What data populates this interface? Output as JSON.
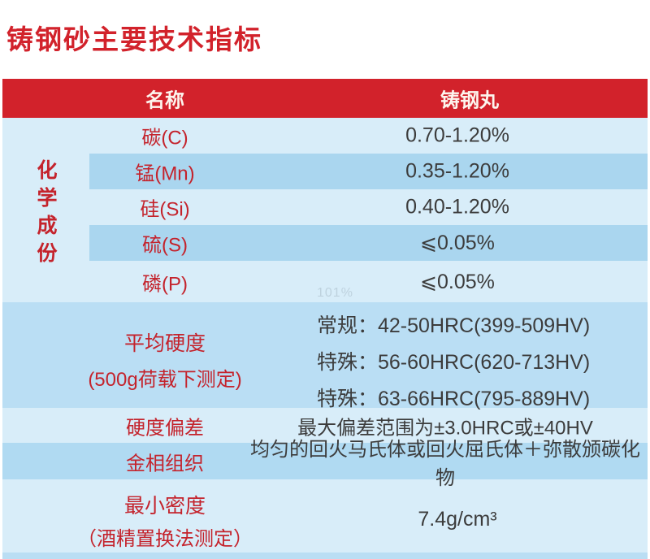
{
  "page": {
    "title": "铸钢砂主要技术指标",
    "watermark": "101%"
  },
  "colors": {
    "header_red": "#d2222b",
    "label_red": "#c4232c",
    "light_blue": "#d8edf9",
    "dark_row_blue": "#aad6ef",
    "block_blue": "#badef4",
    "value_text": "#3c3c3c"
  },
  "table": {
    "header": {
      "name_col": "名称",
      "value_col": "铸钢丸"
    },
    "category_label": {
      "text": "化学成份",
      "chars": [
        "化",
        "学",
        "成",
        "份"
      ]
    },
    "chemical_rows": [
      {
        "name": "碳(C)",
        "value": "0.70-1.20%"
      },
      {
        "name": "锰(Mn)",
        "value": "0.35-1.20%"
      },
      {
        "name": "硅(Si)",
        "value": "0.40-1.20%"
      },
      {
        "name": "硫(S)",
        "value": "⩽0.05%"
      },
      {
        "name": "磷(P)",
        "value": "⩽0.05%"
      }
    ],
    "hardness_row": {
      "label_line1": "平均硬度",
      "label_line2": "(500g荷载下测定)",
      "values": [
        "常规：42-50HRC(399-509HV)",
        "特殊：56-60HRC(620-713HV)",
        "特殊：63-66HRC(795-889HV)"
      ]
    },
    "deviation_row": {
      "label": "硬度偏差",
      "value": "最大偏差范围为±3.0HRC或±40HV"
    },
    "structure_row": {
      "label": "金相组织",
      "value": "均匀的回火马氏体或回火屈氏体＋弥散颁碳化物"
    },
    "density_row": {
      "label_line1": "最小密度",
      "label_line2": "（酒精置换法测定）",
      "value": "7.4g/cm³"
    }
  }
}
